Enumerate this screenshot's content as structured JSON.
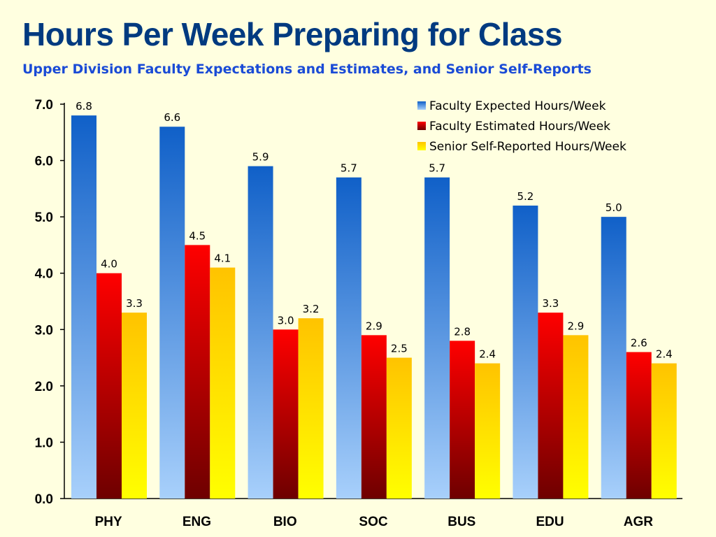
{
  "title": "Hours Per Week Preparing for Class",
  "subtitle": "Upper Division Faculty Expectations and Estimates, and Senior Self-Reports",
  "colors": {
    "background": "#ffffe0",
    "title": "#003a80",
    "subtitle": "#1a4bd6",
    "series_expected": "#1563c9",
    "series_estimated": "#e00000",
    "series_self_reported": "#ffd200"
  },
  "chart_data": {
    "type": "bar",
    "title": "Hours Per Week Preparing for Class",
    "subtitle": "Upper Division Faculty Expectations and Estimates, and Senior Self-Reports",
    "xlabel": "",
    "ylabel": "",
    "ylim": [
      0,
      7
    ],
    "yticks": [
      "0.0",
      "1.0",
      "2.0",
      "3.0",
      "4.0",
      "5.0",
      "6.0",
      "7.0"
    ],
    "grid": false,
    "legend_position": "top-right",
    "categories": [
      "PHY",
      "ENG",
      "BIO",
      "SOC",
      "BUS",
      "EDU",
      "AGR"
    ],
    "series": [
      {
        "name": "Faculty Expected Hours/Week",
        "values": [
          6.8,
          6.6,
          5.9,
          5.7,
          5.7,
          5.2,
          5.0
        ]
      },
      {
        "name": "Faculty Estimated Hours/Week",
        "values": [
          4.0,
          4.5,
          3.0,
          2.9,
          2.8,
          3.3,
          2.6
        ]
      },
      {
        "name": "Senior Self-Reported Hours/Week",
        "values": [
          3.3,
          4.1,
          3.2,
          2.5,
          2.4,
          2.9,
          2.4
        ]
      }
    ]
  }
}
